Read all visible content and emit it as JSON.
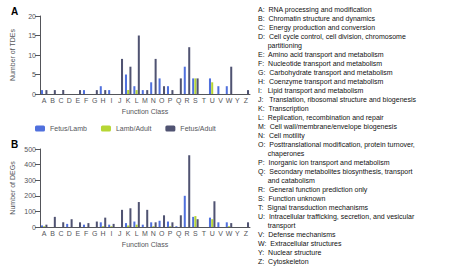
{
  "chart_data": [
    {
      "type": "bar",
      "title": "A",
      "categories": [
        "A",
        "B",
        "C",
        "D",
        "E",
        "F",
        "G",
        "H",
        "I",
        "J",
        "K",
        "L",
        "M",
        "N",
        "O",
        "P",
        "Q",
        "R",
        "S",
        "T",
        "U",
        "V",
        "W",
        "Y",
        "Z"
      ],
      "series": [
        {
          "name": "Fetus/Lamb",
          "values": [
            1,
            0,
            0,
            0,
            0,
            1,
            0,
            2,
            1,
            0,
            5,
            2,
            1,
            3,
            4,
            2,
            0,
            7,
            4,
            0,
            4,
            2,
            2,
            0,
            0
          ]
        },
        {
          "name": "Lamb/Adult",
          "values": [
            0,
            0,
            0,
            0,
            0,
            0,
            0,
            0,
            0,
            0,
            1,
            1,
            0,
            0,
            0,
            0,
            0,
            0,
            4,
            0,
            3,
            0,
            0,
            0,
            0
          ]
        },
        {
          "name": "Fetus/Adult",
          "values": [
            1,
            1,
            1,
            0,
            1,
            0,
            1,
            1,
            0,
            9,
            7,
            15,
            1,
            9,
            2,
            1,
            4,
            12,
            4,
            0,
            0,
            0,
            7,
            0,
            1
          ]
        }
      ],
      "xlabel": "Function Class",
      "ylabel": "Number of TDEs",
      "ylim": [
        0,
        20
      ],
      "yticks": [
        0,
        5,
        10,
        15,
        20
      ],
      "grid": false,
      "legend": "bottom",
      "annotations": [
        "A:  RNA processing and modification",
        "B:  Chromatin structure and dynamics",
        "C:  Energy production and conversion",
        "D:  Cell cycle control, cell division, chromosome",
        "     partitioning",
        "E:  Amino acid transport and metabolism",
        "F:  Nucleotide transport and metabolism",
        "G:  Carbohydrate transport and metabolism",
        "H:  Coenzyme transport and metabolism",
        "I:   Lipid transport and metabolism",
        "J:   Translation, ribosomal structure and biogenesis",
        "K:  Transcription",
        "L:  Replication, recombination and repair",
        "M:  Cell wall/membrane/envelope biogenesis",
        "N:  Cell motility",
        "O:  Posttranslational modification, protein turnover,",
        "     chaperones",
        "P:  Inorganic ion transport and metabolism",
        "Q:  Secondary metabolites biosynthesis, transport",
        "     and catabolism",
        "R:  General function prediction only",
        "S:  Function unknown",
        "T:  Signal transduction mechanisms",
        "U:  Intracellular trafficking, secretion, and vesicular",
        "     transport",
        "V:  Defense mechanisms",
        "W:  Extracellular structures",
        "Y:  Nuclear structure",
        "Z:  Cytoskeleton"
      ]
    },
    {
      "type": "bar",
      "title": "B",
      "categories": [
        "A",
        "B",
        "C",
        "D",
        "E",
        "F",
        "G",
        "H",
        "I",
        "J",
        "K",
        "L",
        "M",
        "N",
        "O",
        "P",
        "Q",
        "R",
        "S",
        "T",
        "U",
        "V",
        "W",
        "Y",
        "Z"
      ],
      "series": [
        {
          "name": "Fetus/Lamb",
          "values": [
            10,
            0,
            0,
            20,
            0,
            15,
            0,
            30,
            15,
            0,
            25,
            35,
            15,
            30,
            40,
            35,
            5,
            200,
            65,
            0,
            60,
            30,
            30,
            0,
            0
          ]
        },
        {
          "name": "Lamb/Adult",
          "values": [
            5,
            0,
            0,
            0,
            0,
            0,
            0,
            5,
            5,
            0,
            10,
            15,
            0,
            5,
            0,
            5,
            0,
            0,
            70,
            0,
            50,
            0,
            5,
            0,
            0
          ]
        },
        {
          "name": "Fetus/Adult",
          "values": [
            15,
            65,
            30,
            50,
            30,
            25,
            35,
            60,
            20,
            110,
            120,
            160,
            110,
            30,
            75,
            30,
            75,
            460,
            50,
            0,
            165,
            0,
            25,
            0,
            30
          ]
        }
      ],
      "xlabel": "Function Class",
      "ylabel": "Number of DEGs",
      "ylim": [
        0,
        500
      ],
      "yticks": [
        0,
        100,
        200,
        300,
        400,
        500
      ],
      "grid": false
    }
  ]
}
